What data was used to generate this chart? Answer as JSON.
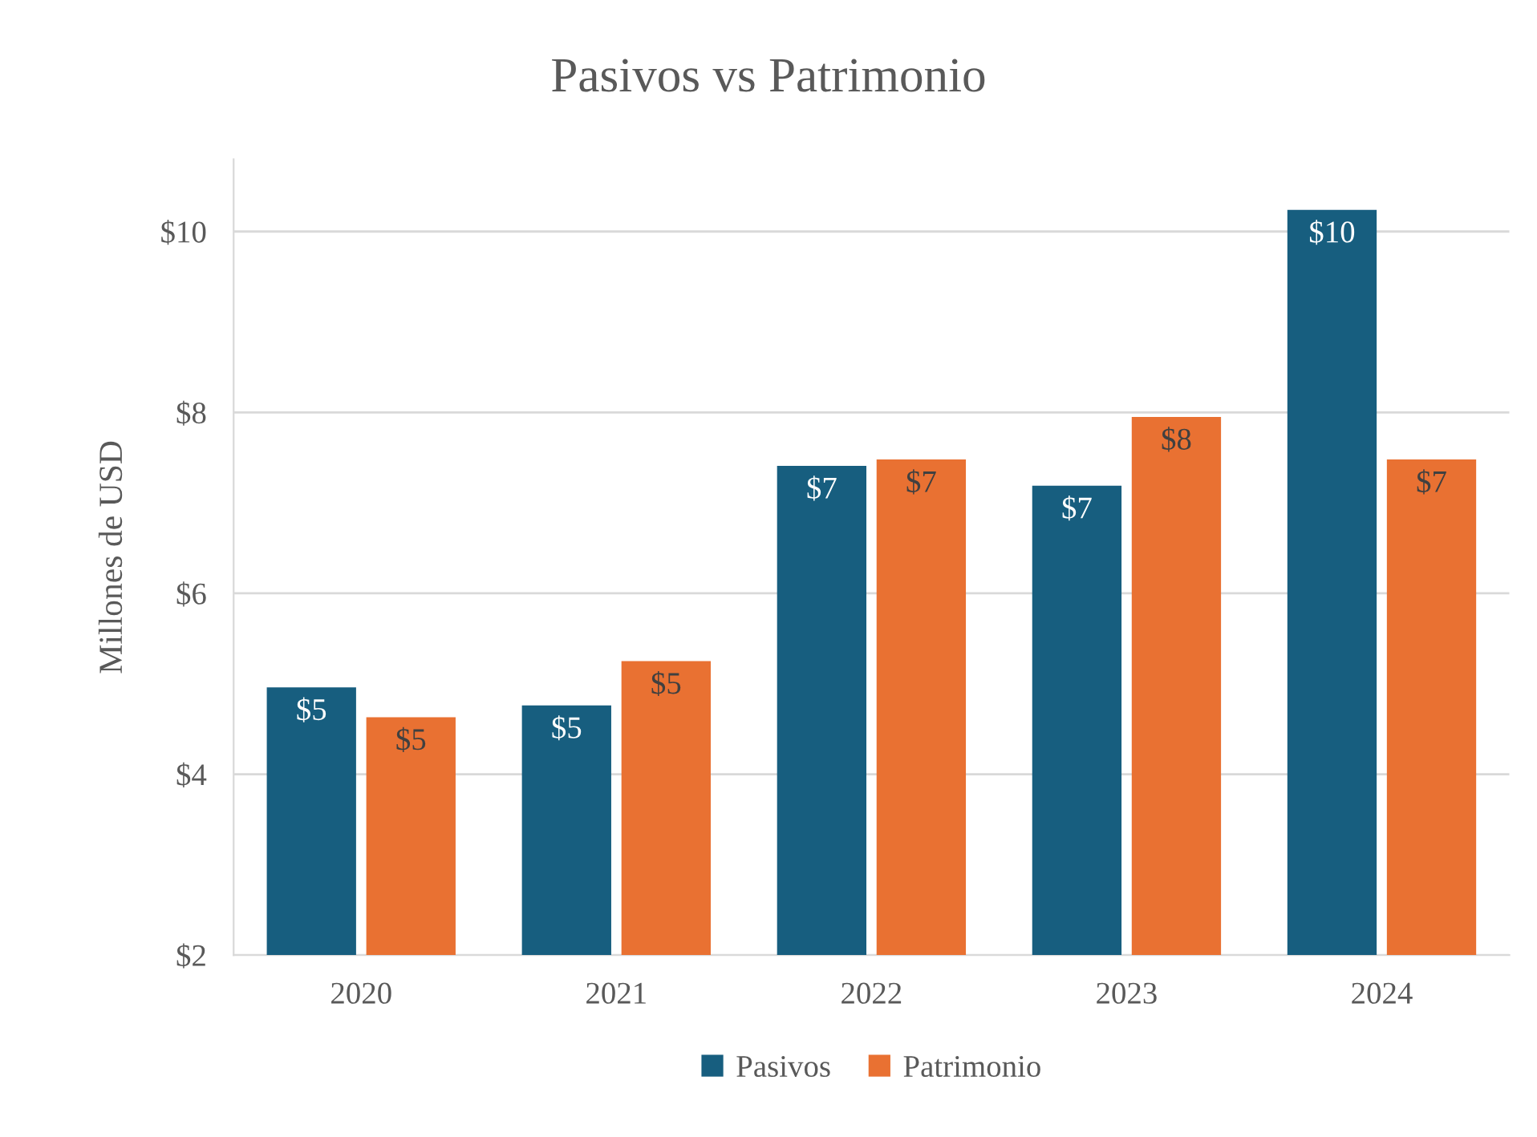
{
  "chart_data": {
    "type": "bar",
    "title": "Pasivos vs Patrimonio",
    "ylabel": "Millones de USD",
    "categories": [
      "2020",
      "2021",
      "2022",
      "2023",
      "2024"
    ],
    "series": [
      {
        "name": "Pasivos",
        "color": "#175e7f",
        "values": [
          4.96,
          4.76,
          7.41,
          7.19,
          10.24
        ],
        "value_labels": [
          "$5",
          "$5",
          "$7",
          "$7",
          "$10"
        ]
      },
      {
        "name": "Patrimonio",
        "color": "#e97132",
        "values": [
          4.63,
          5.25,
          7.48,
          7.95,
          7.48
        ],
        "value_labels": [
          "$5",
          "$5",
          "$7",
          "$8",
          "$7"
        ]
      }
    ],
    "ylim": [
      2,
      10.8
    ],
    "yticks": [
      {
        "value": 2,
        "label": "$2"
      },
      {
        "value": 4,
        "label": "$4"
      },
      {
        "value": 6,
        "label": "$6"
      },
      {
        "value": 8,
        "label": "$8"
      },
      {
        "value": 10,
        "label": "$10"
      }
    ],
    "grid": "y",
    "legend": "bottom"
  }
}
